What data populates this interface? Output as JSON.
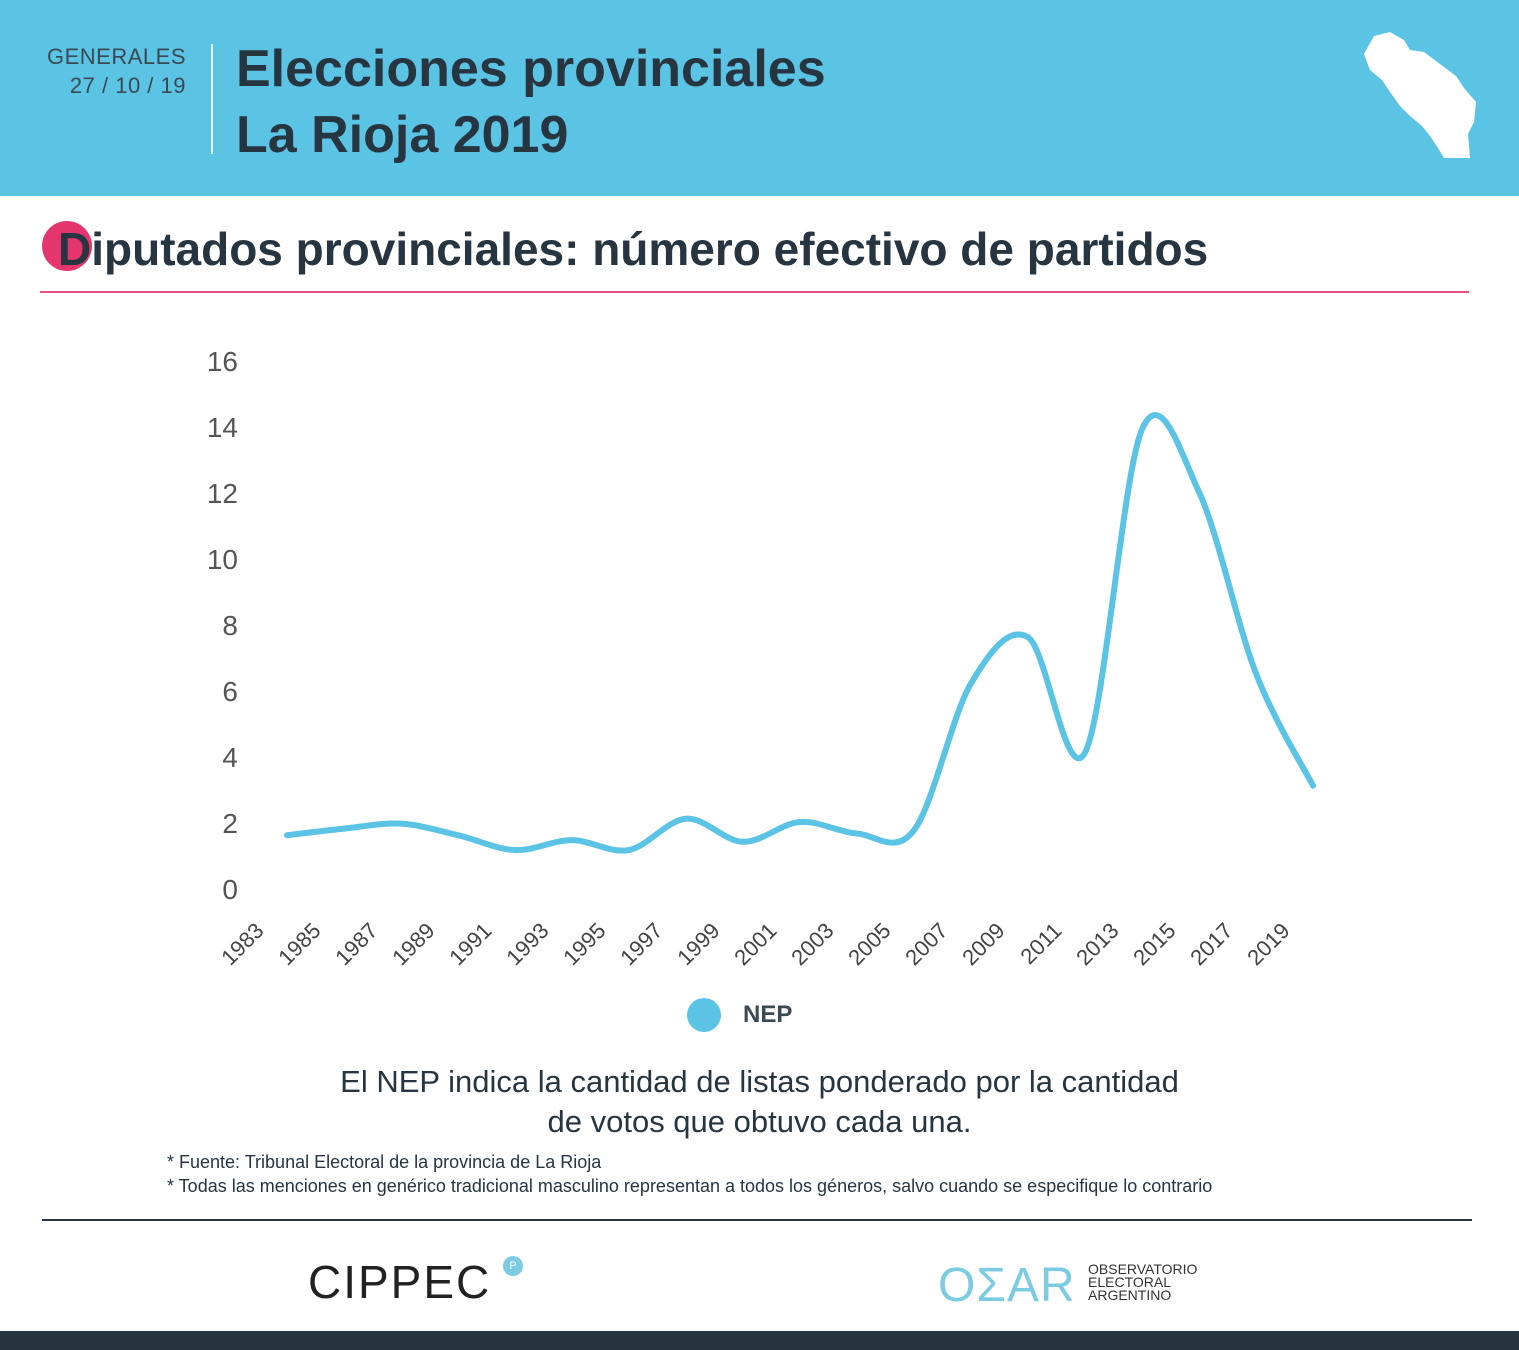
{
  "header": {
    "label": "GENERALES",
    "date": "27 / 10 / 19",
    "title_line1": "Elecciones provinciales",
    "title_line2": "La Rioja 2019",
    "map_icon": "la-rioja-province-map"
  },
  "subtitle": "Diputados provinciales: número efectivo de partidos",
  "colors": {
    "header_bg": "#5bc3e4",
    "accent": "#e5356f",
    "line": "#5bc3e4",
    "dark": "#263540"
  },
  "chart_data": {
    "type": "line",
    "title": "Diputados provinciales: número efectivo de partidos",
    "xlabel": "",
    "ylabel": "",
    "ylim": [
      0,
      16
    ],
    "yticks": [
      "0",
      "2",
      "4",
      "6",
      "8",
      "10",
      "12",
      "14",
      "16"
    ],
    "categories": [
      "1983",
      "1985",
      "1987",
      "1989",
      "1991",
      "1993",
      "1995",
      "1997",
      "1999",
      "2001",
      "2003",
      "2005",
      "2007",
      "2009",
      "2011",
      "2013",
      "2015",
      "2017",
      "2019"
    ],
    "series": [
      {
        "name": "NEP",
        "values": [
          1.6,
          1.8,
          1.95,
          1.6,
          1.15,
          1.45,
          1.15,
          2.1,
          1.4,
          2.0,
          1.65,
          1.75,
          6.2,
          7.6,
          4.1,
          13.9,
          12.0,
          6.5,
          3.1
        ]
      }
    ],
    "legend": "bottom-center",
    "grid": false
  },
  "note": [
    "El NEP indica la cantidad de listas ponderado por la cantidad",
    "de votos que obtuvo cada una."
  ],
  "footnotes": [
    "* Fuente: Tribunal Electoral de la provincia de La Rioja",
    "* Todas las menciones en genérico tradicional masculino representan a todos los géneros, salvo cuando se especifique lo contrario"
  ],
  "logos": {
    "cippec": "CIPPEC",
    "oear": "OΣAR",
    "oear_sub": [
      "OBSERVATORIO",
      "ELECTORAL",
      "ARGENTINO"
    ]
  }
}
